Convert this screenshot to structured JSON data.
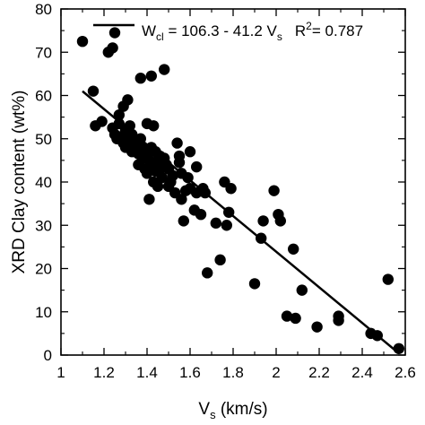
{
  "chart_data": {
    "type": "scatter",
    "xlabel": "V",
    "xlabel_sub": "s",
    "xlabel_unit": " (km/s)",
    "ylabel": "XRD Clay content (wt%)",
    "xlim": [
      1,
      2.6
    ],
    "ylim": [
      0,
      80
    ],
    "xticks": [
      1,
      1.2,
      1.4,
      1.6,
      1.8,
      2,
      2.2,
      2.4,
      2.6
    ],
    "xtick_labels": [
      "1",
      "1.2",
      "1.4",
      "1.6",
      "1.8",
      "2",
      "2.2",
      "2.4",
      "2.6"
    ],
    "yticks": [
      0,
      10,
      20,
      30,
      40,
      50,
      60,
      70,
      80
    ],
    "ytick_labels": [
      "0",
      "10",
      "20",
      "30",
      "40",
      "50",
      "60",
      "70",
      "80"
    ],
    "fit_line": {
      "intercept": 106.3,
      "slope": -41.2,
      "x_range": [
        1.1,
        2.57
      ],
      "label_W": "W",
      "label_W_sub": "cl",
      "label_eq": " = 106.3 - 41.2 V",
      "label_eq_sub": "s",
      "label_r2_prefix": "R",
      "label_r2_sup": "2",
      "label_r2_value": "= 0.787"
    },
    "legend_position": "top",
    "grid": false,
    "points": [
      [
        1.1,
        72.5
      ],
      [
        1.15,
        61.0
      ],
      [
        1.16,
        53.0
      ],
      [
        1.19,
        54.0
      ],
      [
        1.22,
        70.0
      ],
      [
        1.24,
        71.0
      ],
      [
        1.25,
        74.5
      ],
      [
        1.24,
        52.5
      ],
      [
        1.25,
        51.0
      ],
      [
        1.26,
        50.0
      ],
      [
        1.27,
        53.5
      ],
      [
        1.27,
        55.5
      ],
      [
        1.28,
        50.5
      ],
      [
        1.29,
        49.0
      ],
      [
        1.29,
        57.5
      ],
      [
        1.3,
        52.0
      ],
      [
        1.3,
        48.0
      ],
      [
        1.31,
        59.0
      ],
      [
        1.31,
        50.0
      ],
      [
        1.32,
        53.0
      ],
      [
        1.33,
        51.0
      ],
      [
        1.33,
        47.0
      ],
      [
        1.34,
        48.5
      ],
      [
        1.35,
        49.5
      ],
      [
        1.36,
        46.5
      ],
      [
        1.36,
        44.0
      ],
      [
        1.37,
        50.0
      ],
      [
        1.37,
        64.0
      ],
      [
        1.38,
        48.0
      ],
      [
        1.38,
        45.5
      ],
      [
        1.39,
        47.5
      ],
      [
        1.39,
        43.0
      ],
      [
        1.4,
        53.5
      ],
      [
        1.4,
        46.5
      ],
      [
        1.4,
        42.0
      ],
      [
        1.41,
        45.0
      ],
      [
        1.41,
        36.0
      ],
      [
        1.42,
        64.5
      ],
      [
        1.42,
        48.0
      ],
      [
        1.43,
        53.0
      ],
      [
        1.43,
        44.0
      ],
      [
        1.43,
        40.0
      ],
      [
        1.44,
        47.0
      ],
      [
        1.44,
        42.5
      ],
      [
        1.45,
        45.0
      ],
      [
        1.45,
        39.0
      ],
      [
        1.46,
        46.0
      ],
      [
        1.46,
        43.0
      ],
      [
        1.47,
        44.0
      ],
      [
        1.47,
        41.0
      ],
      [
        1.48,
        66.0
      ],
      [
        1.48,
        45.5
      ],
      [
        1.49,
        44.0
      ],
      [
        1.5,
        43.0
      ],
      [
        1.5,
        39.0
      ],
      [
        1.51,
        40.0
      ],
      [
        1.52,
        41.5
      ],
      [
        1.53,
        37.5
      ],
      [
        1.54,
        49.0
      ],
      [
        1.55,
        46.0
      ],
      [
        1.55,
        44.5
      ],
      [
        1.56,
        42.0
      ],
      [
        1.56,
        36.0
      ],
      [
        1.57,
        31.0
      ],
      [
        1.58,
        38.0
      ],
      [
        1.59,
        41.0
      ],
      [
        1.6,
        47.0
      ],
      [
        1.6,
        38.5
      ],
      [
        1.62,
        33.5
      ],
      [
        1.63,
        37.5
      ],
      [
        1.63,
        43.5
      ],
      [
        1.65,
        32.5
      ],
      [
        1.66,
        38.5
      ],
      [
        1.67,
        37.5
      ],
      [
        1.68,
        19.0
      ],
      [
        1.72,
        30.5
      ],
      [
        1.74,
        22.0
      ],
      [
        1.76,
        40.0
      ],
      [
        1.77,
        30.0
      ],
      [
        1.78,
        33.0
      ],
      [
        1.79,
        38.5
      ],
      [
        1.9,
        16.5
      ],
      [
        1.93,
        27.0
      ],
      [
        1.94,
        31.0
      ],
      [
        1.99,
        38.0
      ],
      [
        2.01,
        32.5
      ],
      [
        2.02,
        31.0
      ],
      [
        2.05,
        9.0
      ],
      [
        2.08,
        24.5
      ],
      [
        2.09,
        8.5
      ],
      [
        2.12,
        15.0
      ],
      [
        2.19,
        6.5
      ],
      [
        2.29,
        8.0
      ],
      [
        2.29,
        9.0
      ],
      [
        2.44,
        5.0
      ],
      [
        2.47,
        4.5
      ],
      [
        2.52,
        17.5
      ],
      [
        2.57,
        1.5
      ]
    ]
  }
}
